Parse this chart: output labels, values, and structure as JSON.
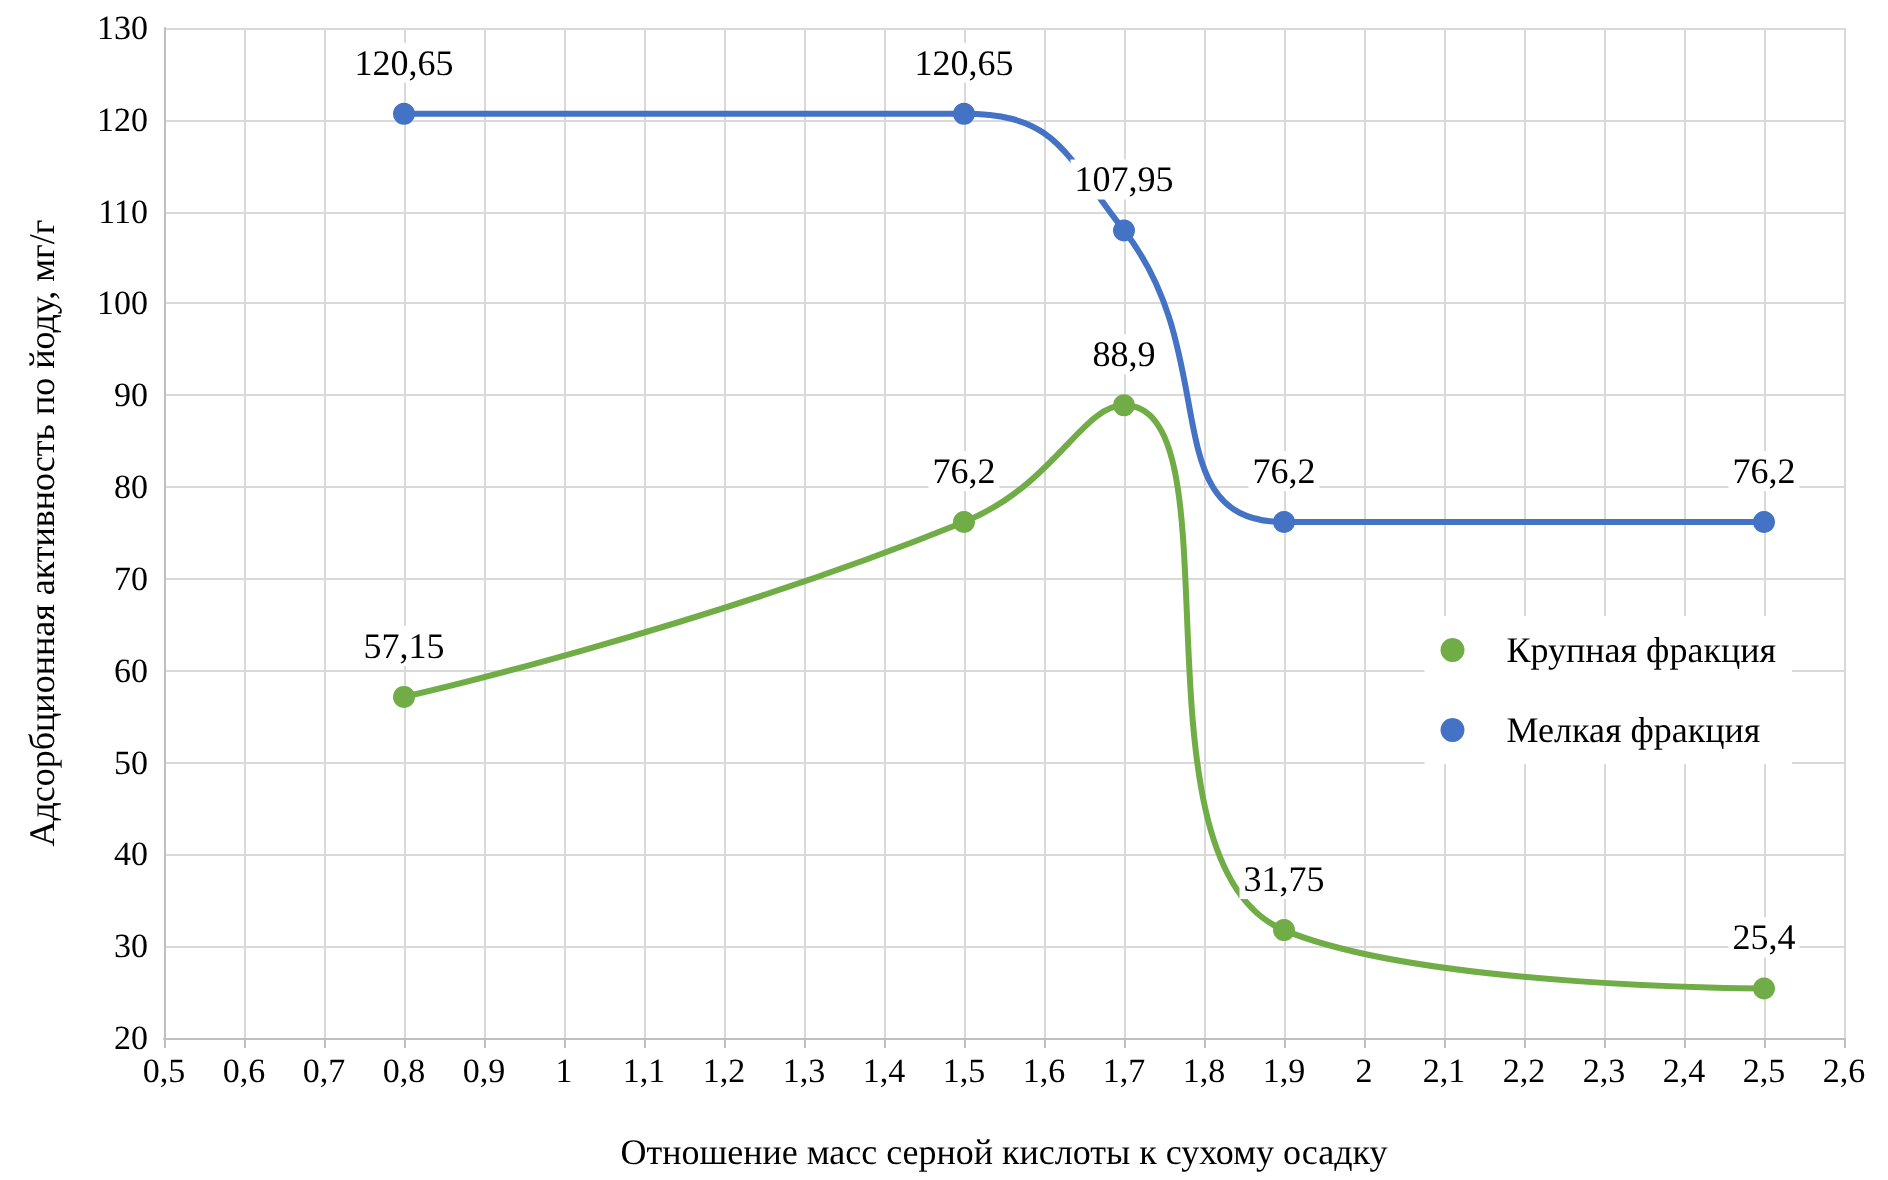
{
  "chart_data": {
    "type": "line",
    "xlabel": "Отношение масс серной кислоты к сухому осадку",
    "ylabel": "Адсорбционная активность по йоду, мг/г",
    "x": [
      0.8,
      1.5,
      1.7,
      1.9,
      2.5
    ],
    "series": [
      {
        "name": "Крупная фракция",
        "color": "#70ad47",
        "values": [
          57.15,
          76.2,
          88.9,
          31.75,
          25.4
        ],
        "value_labels": [
          "57,15",
          "76,2",
          "88,9",
          "31,75",
          "25,4"
        ]
      },
      {
        "name": "Мелкая фракция",
        "color": "#4472c4",
        "values": [
          120.65,
          120.65,
          107.95,
          76.2,
          76.2
        ],
        "value_labels": [
          "120,65",
          "120,65",
          "107,95",
          "76,2",
          "76,2"
        ]
      }
    ],
    "xlim": [
      0.5,
      2.6
    ],
    "xticks": [
      {
        "value": 0.5,
        "label": "0,5"
      },
      {
        "value": 0.6,
        "label": "0,6"
      },
      {
        "value": 0.7,
        "label": "0,7"
      },
      {
        "value": 0.8,
        "label": "0,8"
      },
      {
        "value": 0.9,
        "label": "0,9"
      },
      1,
      {
        "value": 1.1,
        "label": "1,1"
      },
      {
        "value": 1.2,
        "label": "1,2"
      },
      {
        "value": 1.3,
        "label": "1,3"
      },
      {
        "value": 1.4,
        "label": "1,4"
      },
      {
        "value": 1.5,
        "label": "1,5"
      },
      {
        "value": 1.6,
        "label": "1,6"
      },
      {
        "value": 1.7,
        "label": "1,7"
      },
      {
        "value": 1.8,
        "label": "1,8"
      },
      {
        "value": 1.9,
        "label": "1,9"
      },
      2,
      {
        "value": 2.1,
        "label": "2,1"
      },
      {
        "value": 2.2,
        "label": "2,2"
      },
      {
        "value": 2.3,
        "label": "2,3"
      },
      {
        "value": 2.4,
        "label": "2,4"
      },
      {
        "value": 2.5,
        "label": "2,5"
      },
      {
        "value": 2.6,
        "label": "2,6"
      }
    ],
    "ylim": [
      20,
      130
    ],
    "yticks": [
      20,
      30,
      40,
      50,
      60,
      70,
      80,
      90,
      100,
      110,
      120,
      130
    ],
    "grid": true,
    "legend": "right",
    "marker": "circle",
    "line_style": "solid"
  }
}
